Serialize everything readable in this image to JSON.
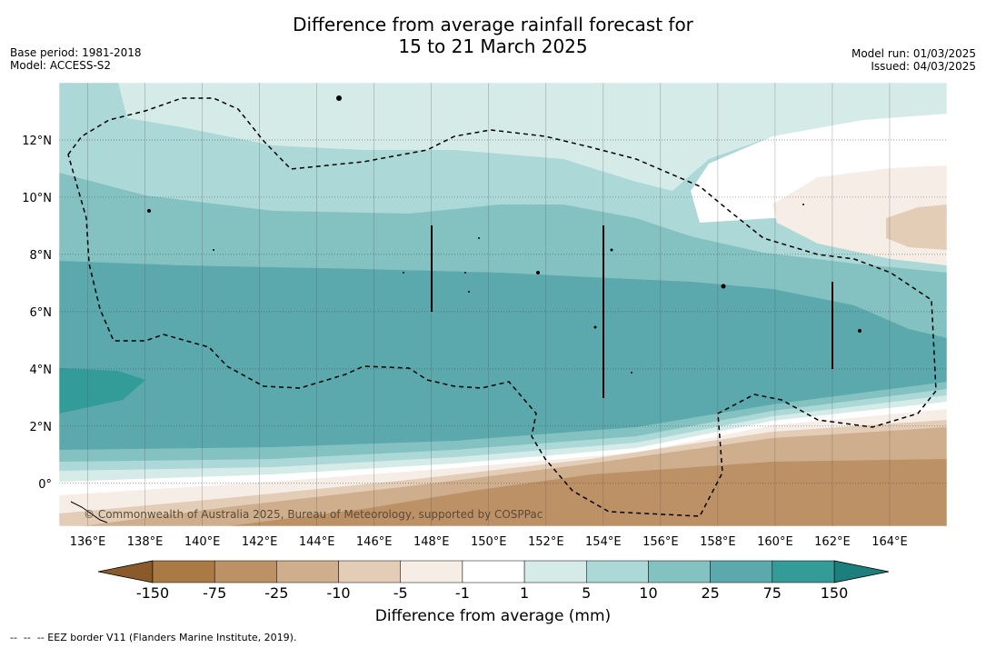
{
  "title": {
    "line1": "Difference from average rainfall forecast for",
    "line2": "15 to 21 March 2025"
  },
  "meta": {
    "base_period": "Base period: 1981-2018",
    "model": "Model: ACCESS-S2",
    "model_run": "Model run: 01/03/2025",
    "issued": "Issued: 04/03/2025"
  },
  "map": {
    "lon_ticks": [
      "136°E",
      "138°E",
      "140°E",
      "142°E",
      "144°E",
      "146°E",
      "148°E",
      "150°E",
      "152°E",
      "154°E",
      "156°E",
      "158°E",
      "160°E",
      "162°E",
      "164°E"
    ],
    "lat_ticks": [
      "12°N",
      "10°N",
      "8°N",
      "6°N",
      "4°N",
      "2°N",
      "0°"
    ],
    "lon_values": [
      136,
      138,
      140,
      142,
      144,
      146,
      148,
      150,
      152,
      154,
      156,
      158,
      160,
      162,
      164
    ],
    "lat_values": [
      12,
      10,
      8,
      6,
      4,
      2,
      0
    ],
    "lon_range": [
      135,
      166
    ],
    "lat_range": [
      -1.5,
      14
    ],
    "copyright": "© Commonwealth of Australia 2025, Bureau of Meteorology, supported by COSPPac"
  },
  "colorbar": {
    "title": "Difference from average (mm)",
    "labels": [
      "-150",
      "-75",
      "-25",
      "-10",
      "-5",
      "-1",
      "1",
      "5",
      "10",
      "25",
      "75",
      "150"
    ],
    "colors": [
      "#a97a44",
      "#bd9166",
      "#cfae8d",
      "#e3cdb7",
      "#f5ede6",
      "#ffffff",
      "#d5ebe8",
      "#acd8d7",
      "#84c1c1",
      "#5ba9ac",
      "#339b98"
    ],
    "extend_low": "#8b5a2b",
    "extend_high": "#1d7f7d"
  },
  "footnote": "--  --  -- EEZ border V11 (Flanders Marine Institute, 2019)."
}
